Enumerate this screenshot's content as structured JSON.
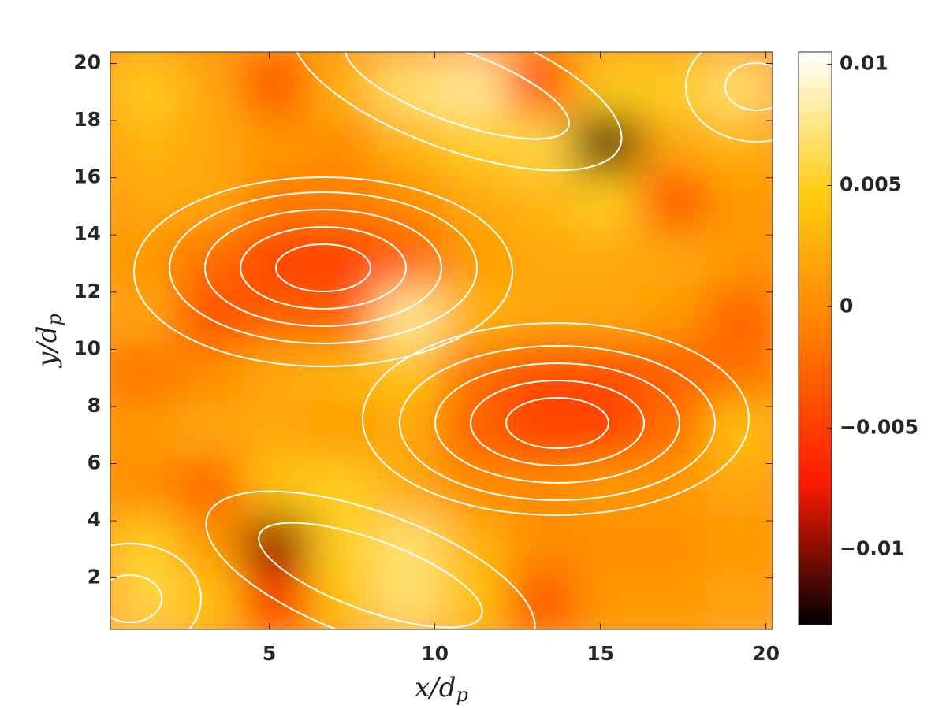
{
  "chart_data": {
    "type": "heatmap",
    "xlabel": "x/d",
    "xlabel_sub": "p",
    "ylabel": "y/d",
    "ylabel_sub": "p",
    "x": [
      1.2,
      3.2,
      5.2,
      7.2,
      9.2,
      11.2,
      13.2,
      15.2,
      17.2,
      19.2
    ],
    "y": [
      1.2,
      3.2,
      5.2,
      7.2,
      9.2,
      11.2,
      13.2,
      15.2,
      17.2,
      19.2
    ],
    "z": [
      [
        0.006,
        0.004,
        -0.006,
        0.004,
        0.007,
        0.004,
        -0.004,
        0.001,
        0.001,
        0.002
      ],
      [
        0.005,
        0.001,
        -0.01,
        0.005,
        0.007,
        0.003,
        0.0,
        0.0,
        0.0,
        0.001
      ],
      [
        0.0,
        -0.003,
        0.004,
        0.005,
        0.002,
        0.0,
        0.0,
        0.001,
        0.001,
        0.002
      ],
      [
        0.001,
        0.002,
        0.002,
        0.001,
        0.002,
        -0.003,
        -0.005,
        -0.005,
        -0.002,
        0.004
      ],
      [
        -0.002,
        0.0,
        0.002,
        0.003,
        0.004,
        -0.002,
        -0.004,
        -0.004,
        -0.003,
        -0.002
      ],
      [
        0.002,
        -0.004,
        -0.003,
        -0.003,
        0.008,
        0.003,
        0.002,
        0.002,
        0.001,
        -0.003
      ],
      [
        0.001,
        -0.002,
        -0.005,
        -0.005,
        -0.003,
        0.001,
        0.002,
        0.002,
        0.002,
        0.001
      ],
      [
        0.002,
        0.002,
        -0.001,
        -0.001,
        0.0,
        0.002,
        0.003,
        0.005,
        -0.004,
        0.001
      ],
      [
        0.003,
        0.002,
        0.001,
        0.0,
        0.003,
        0.005,
        0.006,
        -0.012,
        0.002,
        0.003
      ],
      [
        0.005,
        0.002,
        -0.004,
        0.003,
        0.007,
        0.008,
        -0.004,
        0.005,
        0.005,
        0.007
      ]
    ],
    "xlim": [
      0.2,
      20.2
    ],
    "ylim": [
      0.2,
      20.4
    ],
    "xticks": [
      5,
      10,
      15,
      20
    ],
    "yticks": [
      2,
      4,
      6,
      8,
      10,
      12,
      14,
      16,
      18,
      20
    ],
    "clim": [
      -0.0131,
      0.0105
    ],
    "cticks": [
      {
        "value": -0.01,
        "label": "−0.01"
      },
      {
        "value": -0.005,
        "label": "−0.005"
      },
      0,
      0.005,
      0.01
    ],
    "colormap": [
      "#000000",
      "#ff1a00",
      "#ff7a00",
      "#ffcc10",
      "#ffffff"
    ]
  }
}
